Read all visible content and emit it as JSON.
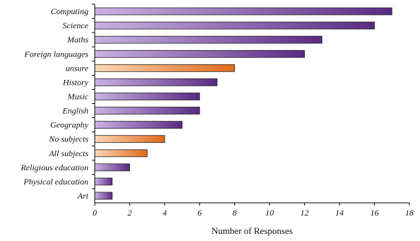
{
  "chart_data": {
    "type": "bar",
    "orientation": "horizontal",
    "title": "",
    "xlabel": "Number of Responses",
    "ylabel": "",
    "xlim": [
      0,
      18
    ],
    "xticks": [
      0,
      2,
      4,
      6,
      8,
      10,
      12,
      14,
      16,
      18
    ],
    "grid": false,
    "legend": "none",
    "categories": [
      "Computing",
      "Science",
      "Maths",
      "Foreign languages",
      "unsure",
      "History",
      "Music",
      "English",
      "Geography",
      "No subjects",
      "All subjects",
      "Religious education",
      "Physical education",
      "Art"
    ],
    "values": [
      17,
      16,
      13,
      12,
      8,
      7,
      6,
      6,
      5,
      4,
      3,
      2,
      1,
      1
    ],
    "bar_kind": [
      "subject",
      "subject",
      "subject",
      "subject",
      "other",
      "subject",
      "subject",
      "subject",
      "subject",
      "other",
      "other",
      "subject",
      "subject",
      "subject"
    ],
    "colors": {
      "subject_light": "#c9b2e3",
      "subject_dark": "#5a2a83",
      "other_light": "#fbd7b8",
      "other_dark": "#e06a1a",
      "bar_stroke": "#222222",
      "axis": "#000000"
    }
  }
}
